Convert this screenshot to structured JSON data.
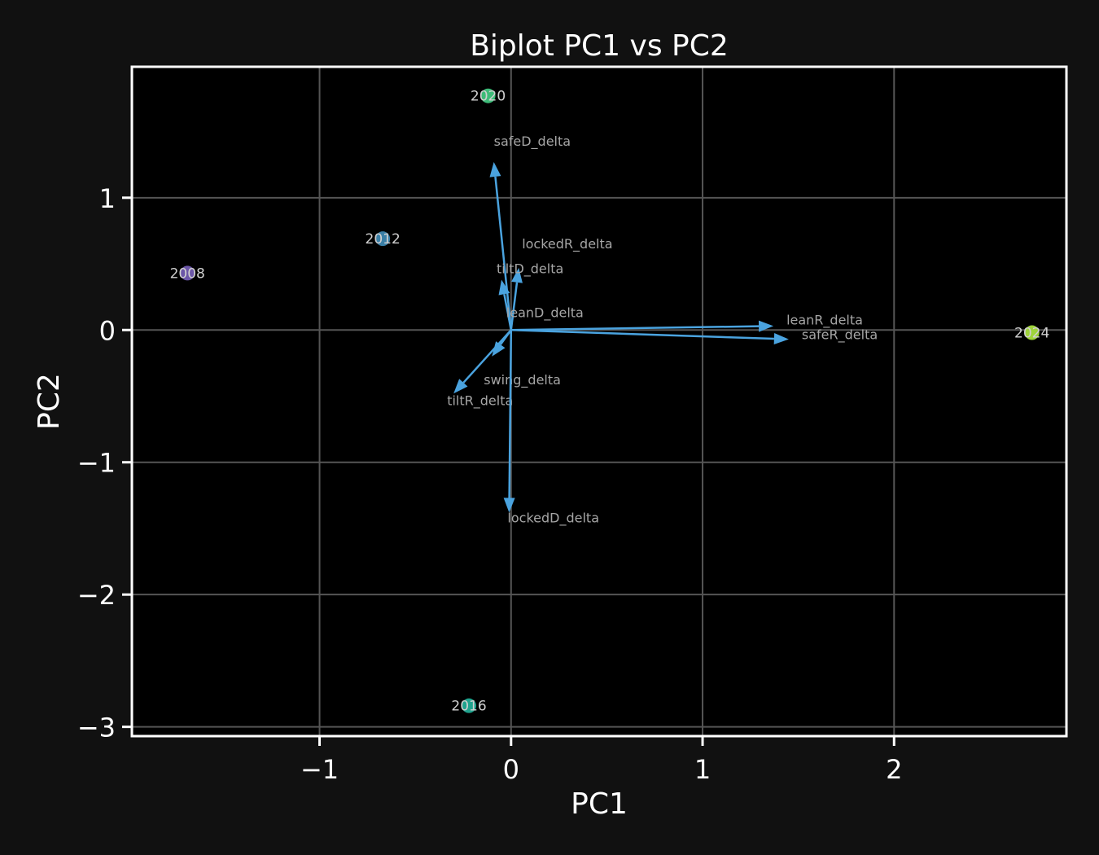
{
  "chart_data": {
    "type": "scatter",
    "title": "Biplot PC1 vs PC2",
    "xlabel": "PC1",
    "ylabel": "PC2",
    "xlim": [
      -1.98,
      2.9
    ],
    "ylim": [
      -3.07,
      1.99
    ],
    "xticks": [
      {
        "value": -1,
        "label": "−1"
      },
      {
        "value": 0,
        "label": "0"
      },
      {
        "value": 1,
        "label": "1"
      },
      {
        "value": 2,
        "label": "2"
      }
    ],
    "yticks": [
      {
        "value": 1,
        "label": "1"
      },
      {
        "value": 0,
        "label": "0"
      },
      {
        "value": -1,
        "label": "−1"
      },
      {
        "value": -2,
        "label": "−2"
      },
      {
        "value": -3,
        "label": "−3"
      }
    ],
    "grid": true,
    "points": [
      {
        "label": "2008",
        "x": -1.69,
        "y": 0.43,
        "color": "#6c57a8"
      },
      {
        "label": "2012",
        "x": -0.67,
        "y": 0.69,
        "color": "#3a7fa6"
      },
      {
        "label": "2016",
        "x": -0.22,
        "y": -2.84,
        "color": "#1fa28d"
      },
      {
        "label": "2020",
        "x": -0.12,
        "y": 1.77,
        "color": "#3dbb78"
      },
      {
        "label": "2024",
        "x": 2.72,
        "y": -0.02,
        "color": "#9ed33a"
      }
    ],
    "loadings": [
      {
        "label": "safeD_delta",
        "x": -0.09,
        "y": 1.27
      },
      {
        "label": "lockedR_delta",
        "x": 0.04,
        "y": 0.47
      },
      {
        "label": "tiltD_delta",
        "x": -0.05,
        "y": 0.38
      },
      {
        "label": "leanD_delta",
        "x": 0.0,
        "y": 0.0
      },
      {
        "label": "leanR_delta",
        "x": 1.37,
        "y": 0.03
      },
      {
        "label": "safeR_delta",
        "x": 1.45,
        "y": -0.07
      },
      {
        "label": "swing_delta",
        "x": -0.1,
        "y": -0.2
      },
      {
        "label": "tiltR_delta",
        "x": -0.3,
        "y": -0.48
      },
      {
        "label": "lockedD_delta",
        "x": -0.01,
        "y": -1.38
      }
    ],
    "colors": {
      "background": "#111111",
      "plot_area": "#000000",
      "frame": "#ffffff",
      "grid": "#555555",
      "arrow": "#4aa3df",
      "annotation": "#a6a6a6",
      "text": "#ffffff"
    }
  }
}
